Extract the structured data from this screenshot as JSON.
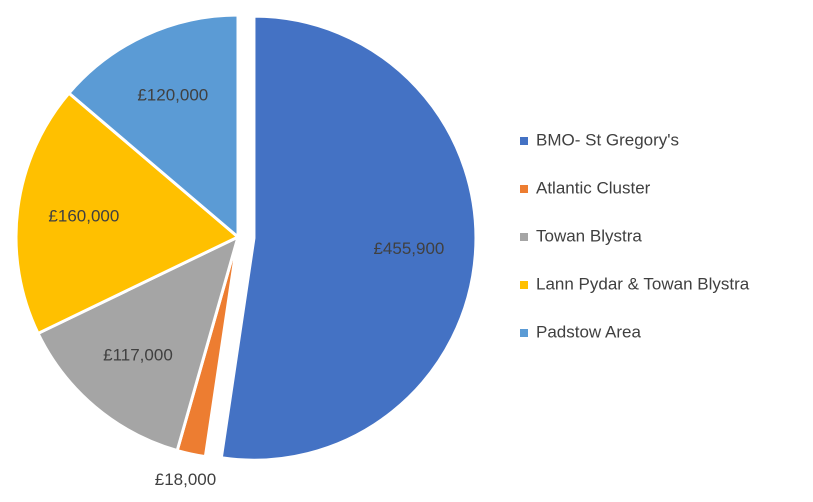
{
  "chart_data": {
    "type": "pie",
    "categories": [
      "BMO- St Gregory's",
      "Atlantic Cluster",
      "Towan Blystra",
      "Lann Pydar & Towan Blystra",
      "Padstow Area"
    ],
    "values": [
      455900,
      18000,
      117000,
      160000,
      120000
    ],
    "value_labels": [
      "£455,900",
      "£18,000",
      "£117,000",
      "£160,000",
      "£120,000"
    ],
    "colors": [
      "#4472c4",
      "#ed7d31",
      "#a5a5a5",
      "#ffc000",
      "#5b9bd5"
    ],
    "legend": "right"
  }
}
